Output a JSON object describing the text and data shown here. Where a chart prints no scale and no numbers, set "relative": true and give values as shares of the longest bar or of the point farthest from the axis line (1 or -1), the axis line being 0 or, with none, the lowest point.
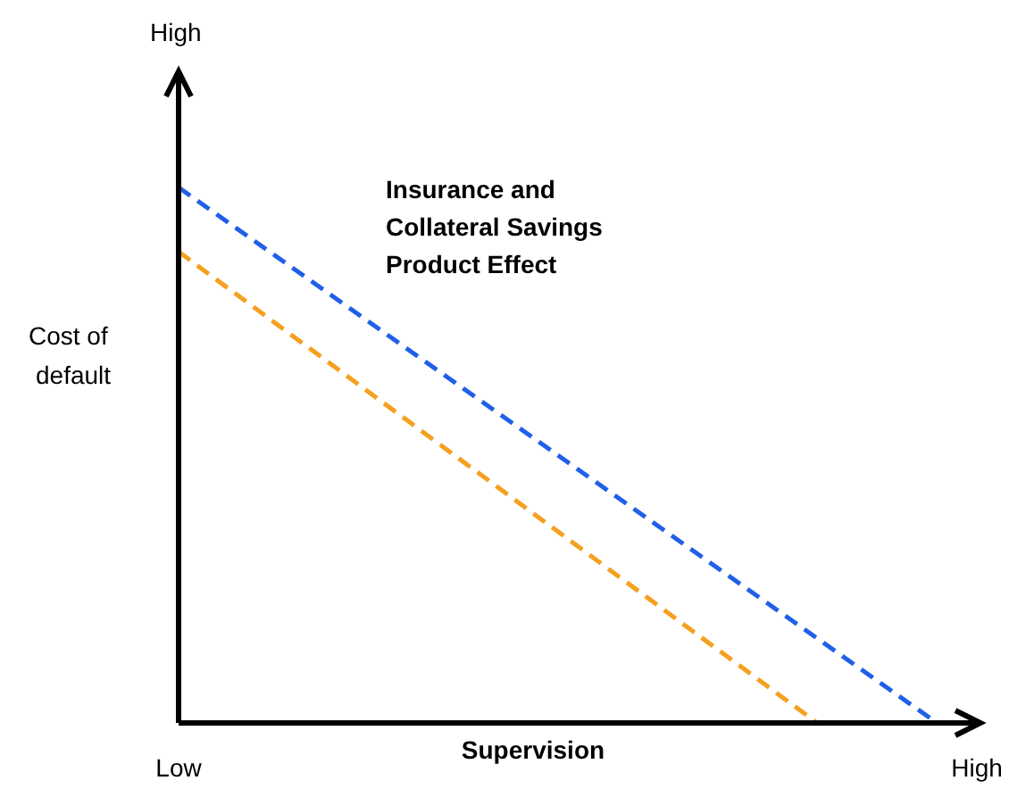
{
  "chart_data": {
    "type": "line",
    "relative": true,
    "xlabel": "Supervision",
    "ylabel": "Cost of default",
    "categories": [
      "Low",
      null,
      null,
      null,
      null,
      null,
      null,
      null,
      null,
      null,
      null,
      null,
      null,
      null,
      null,
      null,
      null,
      null,
      null,
      null,
      "High"
    ],
    "annotations": [
      "High",
      "Insurance and Collateral Savings Product Effect"
    ],
    "line_style": "dashed",
    "marker": "none",
    "grid": false,
    "legend": false,
    "series": [
      {
        "color": "#2060e8",
        "values": [
          1,
          null,
          null,
          null,
          null,
          null,
          null,
          null,
          null,
          null,
          null,
          null,
          null,
          null,
          null,
          null,
          null,
          null,
          null,
          0,
          null
        ]
      },
      {
        "color": "#f5a020",
        "values": [
          0.88,
          null,
          null,
          null,
          null,
          null,
          null,
          null,
          null,
          null,
          null,
          null,
          null,
          null,
          null,
          null,
          0,
          null,
          null,
          null,
          null
        ]
      }
    ]
  }
}
